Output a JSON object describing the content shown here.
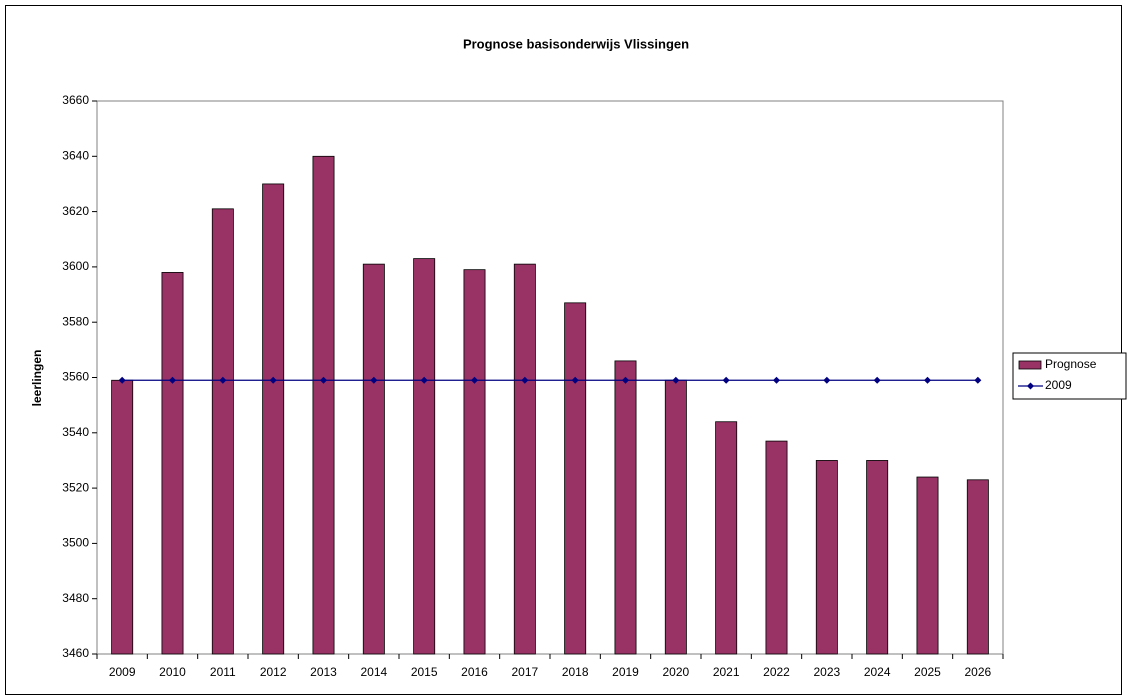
{
  "chart_data": {
    "type": "bar",
    "title": "Prognose basisonderwijs Vlissingen",
    "y_label": "leerlingen",
    "categories": [
      "2009",
      "2010",
      "2011",
      "2012",
      "2013",
      "2014",
      "2015",
      "2016",
      "2017",
      "2018",
      "2019",
      "2020",
      "2021",
      "2022",
      "2023",
      "2024",
      "2025",
      "2026"
    ],
    "series": [
      {
        "name": "Prognose",
        "type": "bar",
        "color": "#993366",
        "values": [
          3559,
          3598,
          3621,
          3630,
          3640,
          3601,
          3603,
          3599,
          3601,
          3587,
          3566,
          3559,
          3544,
          3537,
          3530,
          3530,
          3524,
          3523
        ]
      },
      {
        "name": "2009",
        "type": "line",
        "color": "#000080",
        "values": [
          3559,
          3559,
          3559,
          3559,
          3559,
          3559,
          3559,
          3559,
          3559,
          3559,
          3559,
          3559,
          3559,
          3559,
          3559,
          3559,
          3559,
          3559
        ]
      }
    ],
    "ylim": [
      3460,
      3660
    ],
    "yticks": [
      3460,
      3480,
      3500,
      3520,
      3540,
      3560,
      3580,
      3600,
      3620,
      3640,
      3660
    ],
    "legend": "right"
  }
}
